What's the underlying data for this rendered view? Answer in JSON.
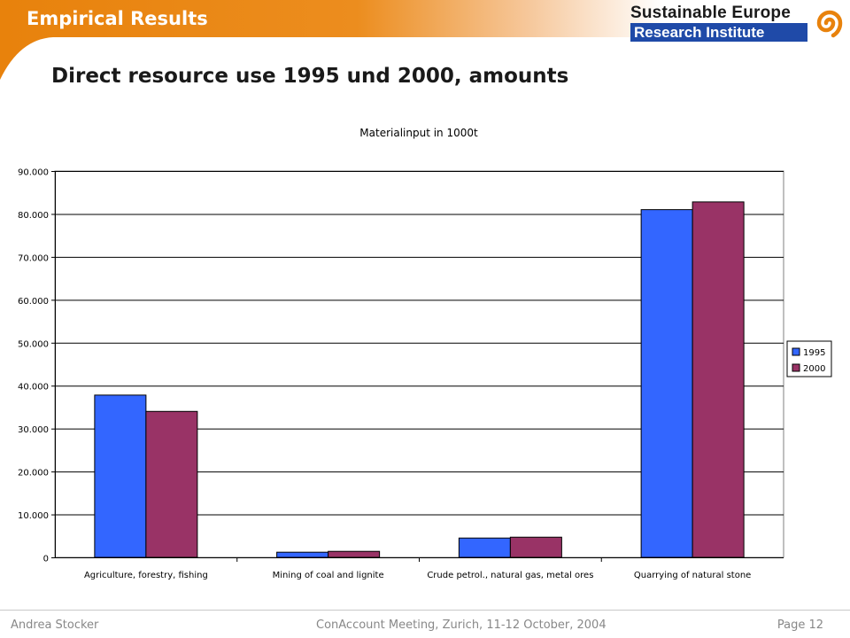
{
  "header": {
    "section_title": "Empirical Results",
    "logo_line1": "Sustainable Europe",
    "logo_line2": "Research Institute",
    "accent_color": "#e8820c",
    "logo_color": "#1f4aa8"
  },
  "slide_title": "Direct resource use 1995 und 2000, amounts",
  "chart_data": {
    "type": "bar",
    "title": "Materialinput in 1000t",
    "xlabel": "",
    "ylabel": "",
    "categories": [
      "Agriculture, forestry, fishing",
      "Mining of coal and lignite",
      "Crude petrol., natural gas, metal ores",
      "Quarrying of natural stone"
    ],
    "series": [
      {
        "name": "1995",
        "color": "#3366ff",
        "values": [
          37800,
          1200,
          4500,
          81000
        ]
      },
      {
        "name": "2000",
        "color": "#993366",
        "values": [
          34000,
          1400,
          4700,
          82800
        ]
      }
    ],
    "ylim": [
      0,
      90000
    ],
    "yticks": [
      "0",
      "10.000",
      "20.000",
      "30.000",
      "40.000",
      "50.000",
      "60.000",
      "70.000",
      "80.000",
      "90.000"
    ],
    "ytick_values": [
      0,
      10000,
      20000,
      30000,
      40000,
      50000,
      60000,
      70000,
      80000,
      90000
    ],
    "grid": true,
    "legend": "right"
  },
  "footer": {
    "author": "Andrea Stocker",
    "event": "ConAccount Meeting, Zurich, 11-12 October, 2004",
    "page": "Page 12"
  }
}
